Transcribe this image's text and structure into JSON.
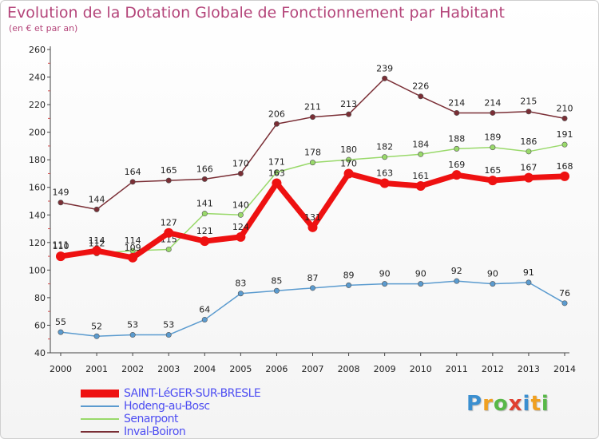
{
  "title": "Evolution de la Dotation Globale de Fonctionnement par Habitant",
  "subtitle": "(en € et par an)",
  "logo": {
    "text": "Proxiti",
    "letters": [
      {
        "ch": "P",
        "color": "#3b8fd0"
      },
      {
        "ch": "r",
        "color": "#f0a020"
      },
      {
        "ch": "o",
        "color": "#58b848"
      },
      {
        "ch": "x",
        "color": "#e04030"
      },
      {
        "ch": "i",
        "color": "#3b8fd0"
      },
      {
        "ch": "t",
        "color": "#f0a020"
      },
      {
        "ch": "i",
        "color": "#58b848"
      }
    ]
  },
  "chart_data": {
    "type": "line",
    "title": "Evolution de la Dotation Globale de Fonctionnement par Habitant",
    "subtitle": "(en € et par an)",
    "xlabel": "",
    "ylabel": "",
    "x": [
      "2000",
      "2001",
      "2002",
      "2003",
      "2004",
      "2005",
      "2006",
      "2007",
      "2008",
      "2009",
      "2010",
      "2011",
      "2012",
      "2013",
      "2014"
    ],
    "ylim": [
      40,
      260
    ],
    "yticks": [
      40,
      60,
      80,
      100,
      120,
      140,
      160,
      180,
      200,
      220,
      240,
      260
    ],
    "grid": false,
    "legend_position": "bottom-left",
    "series": [
      {
        "name": "SAINT-LéGER-SUR-BRESLE",
        "color": "#ee1111",
        "values": [
          110,
          114,
          109,
          127,
          121,
          124,
          163,
          131,
          170,
          163,
          161,
          169,
          165,
          167,
          168
        ],
        "labels": [
          "110",
          "114",
          "109",
          "127",
          "121",
          "124",
          "163",
          "131",
          "170",
          "163",
          "161",
          "169",
          "165",
          "167",
          "168"
        ]
      },
      {
        "name": "Hodeng-au-Bosc",
        "color": "#5b9bcf",
        "values": [
          55,
          52,
          53,
          53,
          64,
          83,
          85,
          87,
          89,
          90,
          90,
          92,
          90,
          91,
          76
        ],
        "labels": [
          "55",
          "52",
          "53",
          "53",
          "64",
          "83",
          "85",
          "87",
          "89",
          "90",
          "90",
          "92",
          "90",
          "91",
          "76"
        ]
      },
      {
        "name": "Senarpont",
        "color": "#99d96a",
        "values": [
          111,
          112,
          114,
          115,
          141,
          140,
          171,
          178,
          180,
          182,
          184,
          188,
          189,
          186,
          191
        ],
        "labels": [
          "111",
          "112",
          "114",
          "115",
          "141",
          "140",
          "171",
          "178",
          "180",
          "182",
          "184",
          "188",
          "189",
          "186",
          "191"
        ]
      },
      {
        "name": "Inval-Boiron",
        "color": "#7a2e35",
        "values": [
          149,
          144,
          164,
          165,
          166,
          170,
          206,
          211,
          213,
          239,
          226,
          214,
          214,
          215,
          210
        ],
        "labels": [
          "149",
          "144",
          "164",
          "165",
          "166",
          "170",
          "206",
          "211",
          "213",
          "239",
          "226",
          "214",
          "214",
          "215",
          "210"
        ]
      }
    ]
  }
}
